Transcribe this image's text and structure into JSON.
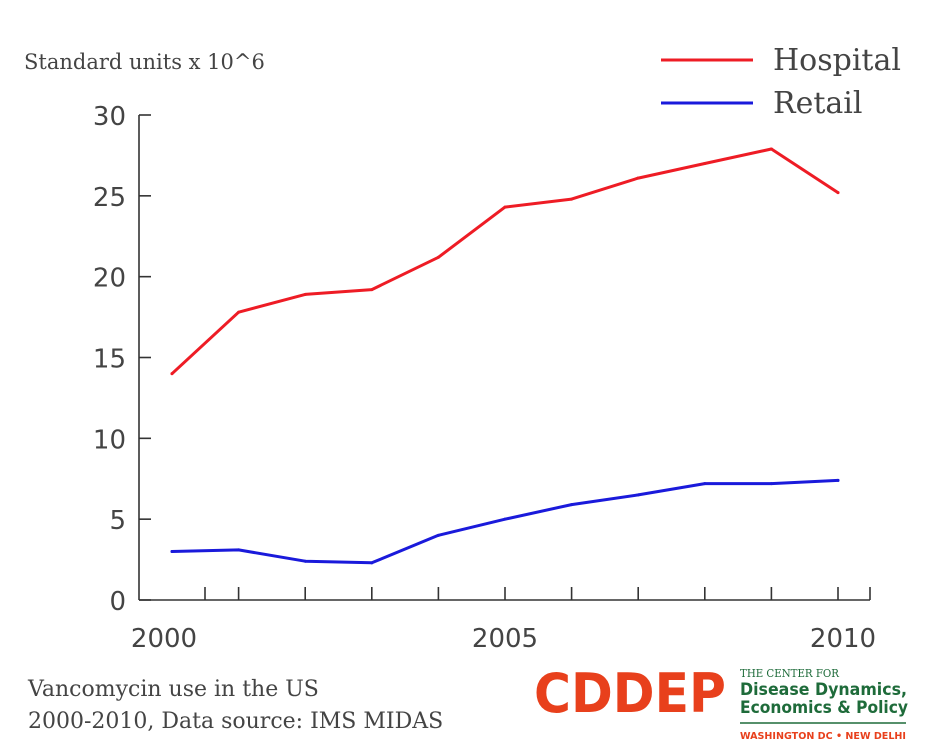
{
  "chart_data": {
    "type": "line",
    "ylabel": "Standard units x 10^6",
    "x": [
      2000,
      2001,
      2002,
      2003,
      2004,
      2005,
      2006,
      2007,
      2008,
      2009,
      2010
    ],
    "xlim": [
      1999.5,
      2010.5
    ],
    "ylim": [
      0,
      30
    ],
    "x_ticks": [
      2000,
      2001,
      2002,
      2003,
      2004,
      2005,
      2006,
      2007,
      2008,
      2009,
      2010
    ],
    "x_tick_labels": [
      "2000",
      "2005",
      "2010"
    ],
    "y_ticks": [
      0,
      5,
      10,
      15,
      20,
      25,
      30
    ],
    "y_tick_labels": [
      "0",
      "5",
      "10",
      "15",
      "20",
      "25",
      "30"
    ],
    "grid": false,
    "legend_position": "top-right",
    "series": [
      {
        "name": "Hospital",
        "color": "#ee1c25",
        "values": [
          14.0,
          17.8,
          18.9,
          19.2,
          21.2,
          24.3,
          24.8,
          26.1,
          27.0,
          27.9,
          25.2
        ]
      },
      {
        "name": "Retail",
        "color": "#1a1adb",
        "values": [
          3.0,
          3.1,
          2.4,
          2.3,
          4.0,
          5.0,
          5.9,
          6.5,
          7.2,
          7.2,
          7.4
        ]
      }
    ]
  },
  "caption": {
    "line1": "Vancomycin use in the US",
    "line2": "2000-2010, Data source: IMS MIDAS"
  },
  "logo": {
    "wordmark": "CDDEP",
    "line1": "THE CENTER FOR",
    "line2": "Disease Dynamics,",
    "line3": "Economics & Policy",
    "line4": "WASHINGTON DC • NEW DELHI",
    "brand_color": "#e8401c",
    "green_color": "#1e6b3a"
  },
  "colors": {
    "axis": "#333333",
    "text": "#444444"
  }
}
